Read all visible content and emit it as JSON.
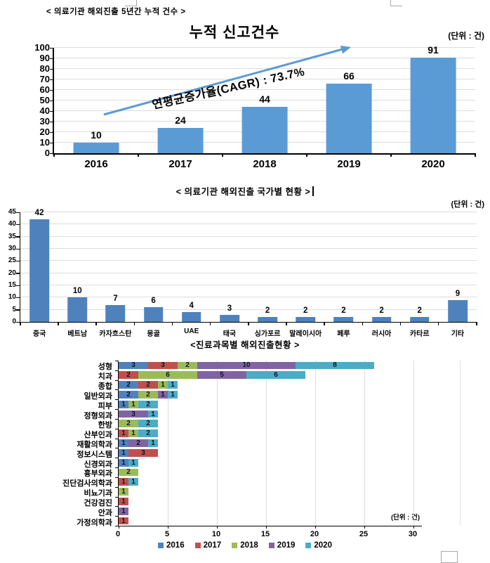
{
  "page": {
    "top_label": "< 의료기관 해외진출 5년간 누적 건수 >"
  },
  "chart_data": [
    {
      "type": "bar",
      "title": "누적 신고건수",
      "unit": "(단위 : 건)",
      "annotation": "연평균증가율(CAGR) : 73.7%",
      "categories": [
        "2016",
        "2017",
        "2018",
        "2019",
        "2020"
      ],
      "values": [
        10,
        24,
        44,
        66,
        91
      ],
      "ylim": [
        0,
        100
      ],
      "ytick_step": 10,
      "bar_color": "#5b9bd5",
      "arrow_color": "#5b9bd5",
      "grid": true,
      "legend_position": "none"
    },
    {
      "type": "bar",
      "title": "< 의료기관 해외진출 국가별 현황 >",
      "unit": "(단위 : 건)",
      "categories": [
        "중국",
        "베트남",
        "카자흐스탄",
        "몽골",
        "UAE",
        "태국",
        "싱가포르",
        "말레이시아",
        "페루",
        "러시아",
        "카타르",
        "기타"
      ],
      "values": [
        42,
        10,
        7,
        6,
        4,
        3,
        2,
        2,
        2,
        2,
        2,
        9
      ],
      "ylim": [
        0,
        45
      ],
      "ytick_step": 5,
      "bar_color": "#4f81bd",
      "grid": true,
      "legend_position": "none"
    },
    {
      "type": "stacked-bar-horizontal",
      "title": "<진료과목별 해외진출현황 >",
      "unit": "(단위 : 건)",
      "categories": [
        "성형",
        "치과",
        "종합",
        "일반외과",
        "피부",
        "정형외과",
        "한방",
        "산부인과",
        "재활의학과",
        "정보시스템",
        "신경외과",
        "흉부외과",
        "진단검사의학과",
        "비뇨기과",
        "건강검진",
        "안과",
        "가정의학과"
      ],
      "series": [
        {
          "name": "2016",
          "color": "#4f81bd",
          "values": [
            3,
            0,
            2,
            2,
            1,
            0,
            0,
            0,
            1,
            1,
            1,
            0,
            0,
            0,
            0,
            0,
            0
          ]
        },
        {
          "name": "2017",
          "color": "#c0504d",
          "values": [
            3,
            2,
            2,
            0,
            0,
            0,
            0,
            1,
            0,
            3,
            0,
            0,
            1,
            0,
            1,
            0,
            1
          ]
        },
        {
          "name": "2018",
          "color": "#9bbb59",
          "values": [
            2,
            6,
            1,
            2,
            1,
            0,
            2,
            1,
            0,
            0,
            0,
            2,
            0,
            1,
            0,
            0,
            0
          ]
        },
        {
          "name": "2019",
          "color": "#8064a2",
          "values": [
            10,
            5,
            0,
            1,
            0,
            3,
            0,
            0,
            2,
            0,
            0,
            0,
            0,
            0,
            0,
            1,
            0
          ]
        },
        {
          "name": "2020",
          "color": "#4bacc6",
          "values": [
            8,
            6,
            1,
            1,
            2,
            1,
            2,
            2,
            1,
            0,
            1,
            0,
            1,
            0,
            0,
            0,
            0
          ]
        }
      ],
      "xlim": [
        0,
        30
      ],
      "xtick_step": 5,
      "grid": true,
      "legend_position": "bottom",
      "legend": [
        "2016",
        "2017",
        "2018",
        "2019",
        "2020"
      ]
    }
  ]
}
